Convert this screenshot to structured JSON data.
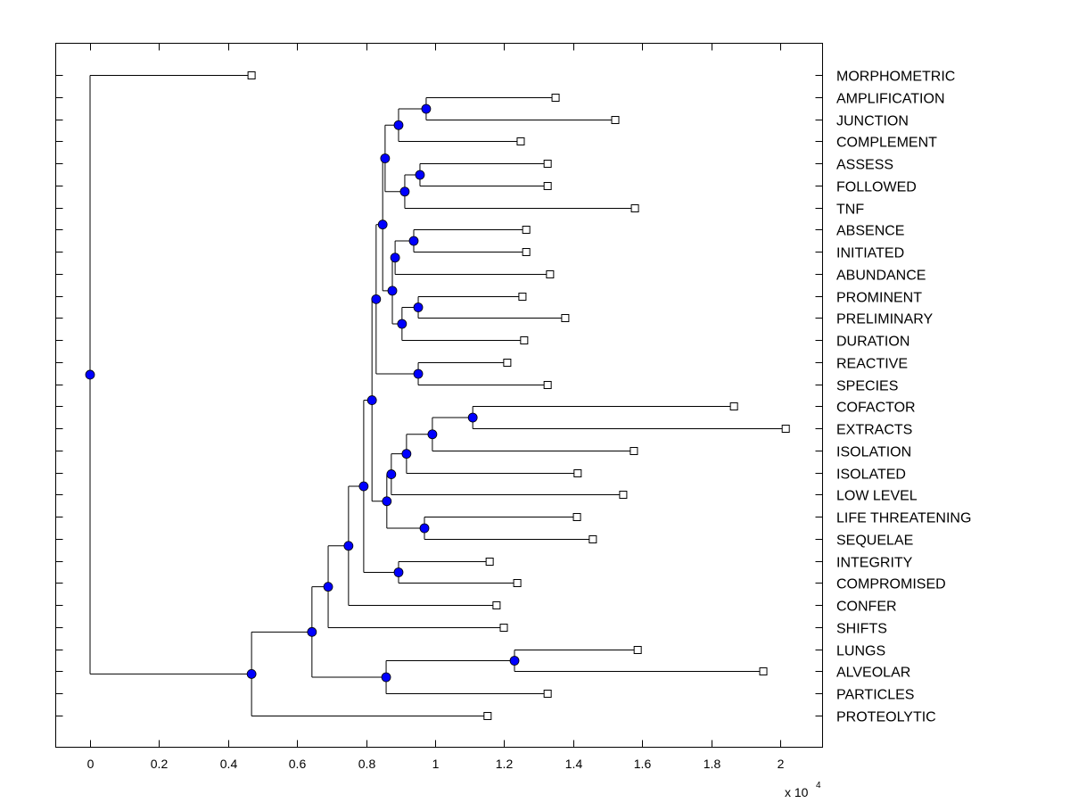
{
  "chart_data": {
    "type": "dendrogram",
    "title": "",
    "xlabel": "",
    "ylabel": "",
    "x_multiplier_label": "x 10",
    "x_multiplier_exponent": "4",
    "xlim": [
      -0.1,
      2.12
    ],
    "xticks": [
      "0",
      "0.2",
      "0.4",
      "0.6",
      "0.8",
      "1",
      "1.2",
      "1.4",
      "1.6",
      "1.8",
      "2"
    ],
    "xtick_values": [
      0,
      0.2,
      0.4,
      0.6,
      0.8,
      1,
      1.2,
      1.4,
      1.6,
      1.8,
      2
    ],
    "node_color": "#0000FF",
    "leaves": [
      {
        "label": "MORPHOMETRIC",
        "x": 0.468
      },
      {
        "label": "AMPLIFICATION",
        "x": 1.349
      },
      {
        "label": "JUNCTION",
        "x": 1.522
      },
      {
        "label": "COMPLEMENT",
        "x": 1.248
      },
      {
        "label": "ASSESS",
        "x": 1.326
      },
      {
        "label": "FOLLOWED",
        "x": 1.326
      },
      {
        "label": "TNF",
        "x": 1.579
      },
      {
        "label": "ABSENCE",
        "x": 1.264
      },
      {
        "label": "INITIATED",
        "x": 1.264
      },
      {
        "label": "ABUNDANCE",
        "x": 1.333
      },
      {
        "label": "PROMINENT",
        "x": 1.253
      },
      {
        "label": "PRELIMINARY",
        "x": 1.377
      },
      {
        "label": "DURATION",
        "x": 1.258
      },
      {
        "label": "REACTIVE",
        "x": 1.209
      },
      {
        "label": "SPECIES",
        "x": 1.326
      },
      {
        "label": "COFACTOR",
        "x": 1.866
      },
      {
        "label": "EXTRACTS",
        "x": 2.016
      },
      {
        "label": "ISOLATION",
        "x": 1.576
      },
      {
        "label": "ISOLATED",
        "x": 1.413
      },
      {
        "label": "LOW LEVEL",
        "x": 1.545
      },
      {
        "label": "LIFE THREATENING",
        "x": 1.411
      },
      {
        "label": "SEQUELAE",
        "x": 1.457
      },
      {
        "label": "INTEGRITY",
        "x": 1.158
      },
      {
        "label": "COMPROMISED",
        "x": 1.238
      },
      {
        "label": "CONFER",
        "x": 1.178
      },
      {
        "label": "SHIFTS",
        "x": 1.199
      },
      {
        "label": "LUNGS",
        "x": 1.587
      },
      {
        "label": "ALVEOLAR",
        "x": 1.951
      },
      {
        "label": "PARTICLES",
        "x": 1.326
      },
      {
        "label": "PROTEOLYTIC",
        "x": 1.152
      }
    ],
    "nodes": [
      {
        "id": "A",
        "children": [
          "1",
          "2"
        ],
        "x": 0.974
      },
      {
        "id": "B",
        "children": [
          "A",
          "3"
        ],
        "x": 0.894
      },
      {
        "id": "C",
        "children": [
          "4",
          "5"
        ],
        "x": 0.956
      },
      {
        "id": "D",
        "children": [
          "C",
          "6"
        ],
        "x": 0.912
      },
      {
        "id": "E",
        "children": [
          "B",
          "D"
        ],
        "x": 0.855
      },
      {
        "id": "F",
        "children": [
          "7",
          "8"
        ],
        "x": 0.938
      },
      {
        "id": "G",
        "children": [
          "F",
          "9"
        ],
        "x": 0.884
      },
      {
        "id": "H",
        "children": [
          "10",
          "11"
        ],
        "x": 0.951
      },
      {
        "id": "I",
        "children": [
          "H",
          "12"
        ],
        "x": 0.904
      },
      {
        "id": "J",
        "children": [
          "G",
          "I"
        ],
        "x": 0.876
      },
      {
        "id": "K",
        "children": [
          "E",
          "J"
        ],
        "x": 0.848
      },
      {
        "id": "L",
        "children": [
          "13",
          "14"
        ],
        "x": 0.951
      },
      {
        "id": "M",
        "children": [
          "K",
          "L"
        ],
        "x": 0.829
      },
      {
        "id": "N",
        "children": [
          "15",
          "16"
        ],
        "x": 1.109
      },
      {
        "id": "O",
        "children": [
          "N",
          "17"
        ],
        "x": 0.992
      },
      {
        "id": "P",
        "children": [
          "O",
          "18"
        ],
        "x": 0.917
      },
      {
        "id": "Q",
        "children": [
          "P",
          "19"
        ],
        "x": 0.873
      },
      {
        "id": "R",
        "children": [
          "20",
          "21"
        ],
        "x": 0.969
      },
      {
        "id": "S",
        "children": [
          "Q",
          "R"
        ],
        "x": 0.86
      },
      {
        "id": "T",
        "children": [
          "M",
          "S"
        ],
        "x": 0.817
      },
      {
        "id": "U",
        "children": [
          "22",
          "23"
        ],
        "x": 0.894
      },
      {
        "id": "V",
        "children": [
          "T",
          "U"
        ],
        "x": 0.793
      },
      {
        "id": "W",
        "children": [
          "V",
          "24"
        ],
        "x": 0.749
      },
      {
        "id": "X",
        "children": [
          "W",
          "25"
        ],
        "x": 0.69
      },
      {
        "id": "Y",
        "children": [
          "26",
          "27"
        ],
        "x": 1.23
      },
      {
        "id": "Z",
        "children": [
          "Y",
          "28"
        ],
        "x": 0.858
      },
      {
        "id": "AA",
        "children": [
          "X",
          "Z"
        ],
        "x": 0.643
      },
      {
        "id": "AB",
        "children": [
          "AA",
          "29"
        ],
        "x": 0.468
      },
      {
        "id": "ROOT",
        "children": [
          "0",
          "AB"
        ],
        "x": 0.0
      }
    ]
  }
}
